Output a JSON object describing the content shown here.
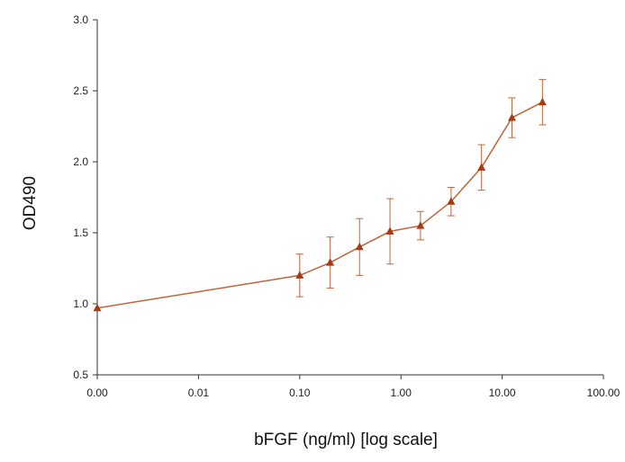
{
  "chart_data": {
    "type": "line",
    "title": "",
    "xlabel": "bFGF (ng/ml) [log scale]",
    "ylabel": "OD490",
    "x_scale": "log",
    "x_ticks": [
      "0.00",
      "0.01",
      "0.10",
      "1.00",
      "10.00",
      "100.00"
    ],
    "x_tick_values": [
      0.001,
      0.01,
      0.1,
      1,
      10,
      100
    ],
    "y_ticks": [
      "0.5",
      "1.0",
      "1.5",
      "2.0",
      "2.5",
      "3.0"
    ],
    "y_tick_values": [
      0.5,
      1.0,
      1.5,
      2.0,
      2.5,
      3.0
    ],
    "xlim": [
      0.001,
      100
    ],
    "ylim": [
      0.5,
      3.0
    ],
    "grid": false,
    "legend": "none",
    "series": [
      {
        "color": "#c0643a",
        "marker_color": "#a83a12",
        "marker": "triangle",
        "points": [
          {
            "x": 0.001,
            "y": 0.97,
            "err": 0
          },
          {
            "x": 0.1,
            "y": 1.2,
            "err": 0.15
          },
          {
            "x": 0.2,
            "y": 1.29,
            "err": 0.18
          },
          {
            "x": 0.39,
            "y": 1.4,
            "err": 0.2
          },
          {
            "x": 0.78,
            "y": 1.51,
            "err": 0.23
          },
          {
            "x": 1.56,
            "y": 1.55,
            "err": 0.1
          },
          {
            "x": 3.13,
            "y": 1.72,
            "err": 0.1
          },
          {
            "x": 6.25,
            "y": 1.96,
            "err": 0.16
          },
          {
            "x": 12.5,
            "y": 2.31,
            "err": 0.14
          },
          {
            "x": 25,
            "y": 2.42,
            "err": 0.16
          }
        ]
      }
    ]
  }
}
